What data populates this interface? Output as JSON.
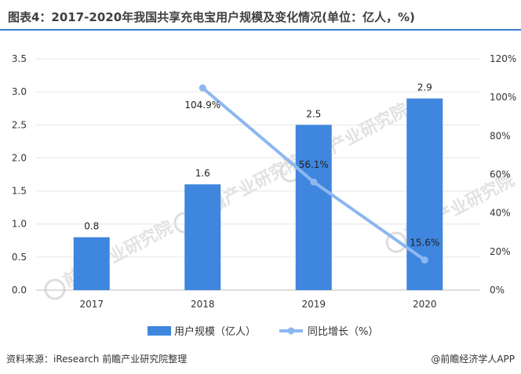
{
  "title": "图表4：2017-2020年我国共享充电宝用户规模及变化情况(单位：亿人，%)",
  "source": "资料来源：iResearch 前瞻产业研究院整理",
  "brand": "@前瞻经济学人APP",
  "watermark": "前瞻产业研究院",
  "colors": {
    "bar": "#3f86de",
    "line": "#8db7f0",
    "accent": "#3c7fd8"
  },
  "chart_data": {
    "type": "bar",
    "categories": [
      "2017",
      "2018",
      "2019",
      "2020"
    ],
    "series": [
      {
        "name": "用户规模（亿人）",
        "type": "bar",
        "axis": "left",
        "values": [
          0.8,
          1.6,
          2.5,
          2.9
        ],
        "labels": [
          "0.8",
          "1.6",
          "2.5",
          "2.9"
        ]
      },
      {
        "name": "同比增长（%）",
        "type": "line",
        "axis": "right",
        "values": [
          null,
          104.9,
          56.1,
          15.6
        ],
        "labels": [
          "",
          "104.9%",
          "56.1%",
          "15.6%"
        ]
      }
    ],
    "y_left": {
      "min": 0,
      "max": 3.5,
      "ticks": [
        "0.0",
        "0.5",
        "1.0",
        "1.5",
        "2.0",
        "2.5",
        "3.0",
        "3.5"
      ]
    },
    "y_right": {
      "min": 0,
      "max": 120,
      "ticks": [
        "0%",
        "20%",
        "40%",
        "60%",
        "80%",
        "100%",
        "120%"
      ]
    },
    "grid": "horizontal",
    "legend": "bottom-center"
  }
}
